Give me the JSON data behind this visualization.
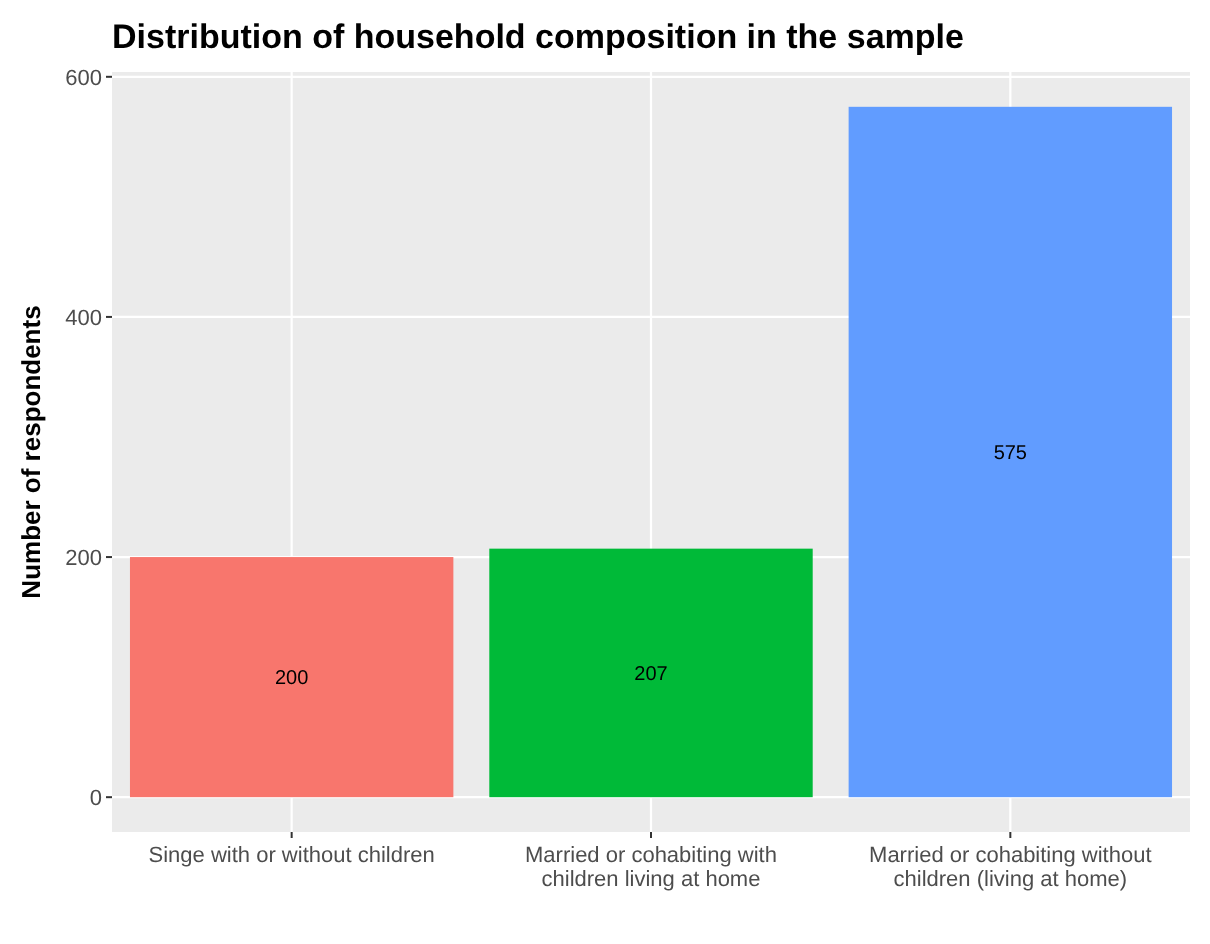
{
  "chart_data": {
    "type": "bar",
    "title": "Distribution of household composition in the sample",
    "ylabel": "Number of respondents",
    "categories": [
      "Singe with or without children",
      "Married or cohabiting with children living at home",
      "Married or cohabiting without children (living at home)"
    ],
    "values": [
      200,
      207,
      575
    ],
    "colors": [
      "#f8766d",
      "#00ba38",
      "#619cff"
    ],
    "ylim": [
      -29,
      604
    ],
    "yticks": [
      0,
      200,
      400,
      600
    ],
    "grid": true,
    "data_labels": true
  }
}
